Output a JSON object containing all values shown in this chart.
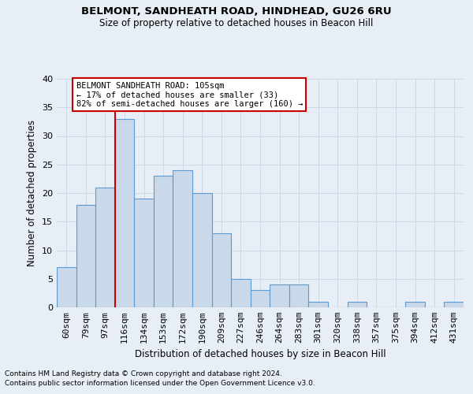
{
  "title1": "BELMONT, SANDHEATH ROAD, HINDHEAD, GU26 6RU",
  "title2": "Size of property relative to detached houses in Beacon Hill",
  "xlabel": "Distribution of detached houses by size in Beacon Hill",
  "ylabel": "Number of detached properties",
  "categories": [
    "60sqm",
    "79sqm",
    "97sqm",
    "116sqm",
    "134sqm",
    "153sqm",
    "172sqm",
    "190sqm",
    "209sqm",
    "227sqm",
    "246sqm",
    "264sqm",
    "283sqm",
    "301sqm",
    "320sqm",
    "338sqm",
    "357sqm",
    "375sqm",
    "394sqm",
    "412sqm",
    "431sqm"
  ],
  "values": [
    7,
    18,
    21,
    33,
    19,
    23,
    24,
    20,
    13,
    5,
    3,
    4,
    4,
    1,
    0,
    1,
    0,
    0,
    1,
    0,
    1
  ],
  "bar_color": "#c9d9ea",
  "bar_edge_color": "#5b9bd5",
  "grid_color": "#d0d8e8",
  "vline_color": "#cc0000",
  "annotation_text": "BELMONT SANDHEATH ROAD: 105sqm\n← 17% of detached houses are smaller (33)\n82% of semi-detached houses are larger (160) →",
  "annotation_box_color": "#ffffff",
  "annotation_box_edge": "#cc0000",
  "ylim": [
    0,
    40
  ],
  "yticks": [
    0,
    5,
    10,
    15,
    20,
    25,
    30,
    35,
    40
  ],
  "footnote1": "Contains HM Land Registry data © Crown copyright and database right 2024.",
  "footnote2": "Contains public sector information licensed under the Open Government Licence v3.0.",
  "bg_color": "#e8eef5"
}
